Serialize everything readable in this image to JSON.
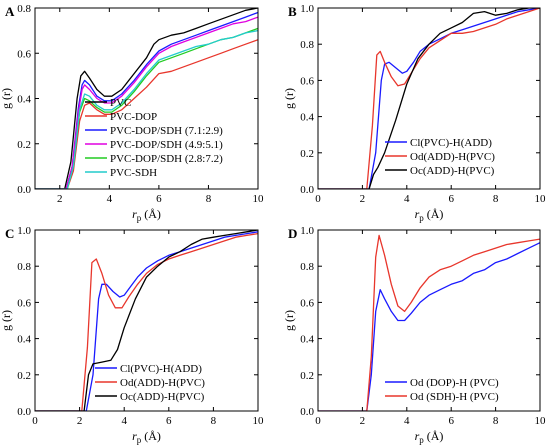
{
  "chart_data": [
    {
      "panel": "A",
      "type": "line",
      "xlabel_main": "r",
      "xlabel_sub": "p",
      "xlabel_unit": " (Å)",
      "ylabel": "g (r)",
      "xlim": [
        1,
        10
      ],
      "ylim": [
        0,
        0.8
      ],
      "xticks": [
        "2",
        "4",
        "6",
        "8",
        "10"
      ],
      "yticks": [
        "0.0",
        "0.2",
        "0.4",
        "0.6",
        "0.8"
      ],
      "legend_position": "lower-right",
      "series": [
        {
          "name": "PVC",
          "color": "#000000",
          "x": [
            1,
            2.2,
            2.45,
            2.7,
            2.85,
            3.0,
            3.2,
            3.5,
            3.8,
            4.1,
            4.5,
            5.0,
            5.5,
            5.8,
            6.0,
            6.5,
            7.0,
            7.5,
            8.0,
            8.5,
            9.0,
            9.5,
            10
          ],
          "y": [
            0,
            0,
            0.12,
            0.4,
            0.5,
            0.52,
            0.49,
            0.44,
            0.41,
            0.41,
            0.44,
            0.51,
            0.58,
            0.64,
            0.66,
            0.68,
            0.69,
            0.71,
            0.73,
            0.75,
            0.77,
            0.79,
            0.8
          ]
        },
        {
          "name": "PVC-DOP",
          "color": "#e8362c",
          "x": [
            1,
            2.3,
            2.55,
            2.8,
            3.0,
            3.2,
            3.5,
            3.8,
            4.1,
            4.5,
            5.0,
            5.5,
            6.0,
            6.5,
            7.0,
            7.5,
            8.0,
            8.5,
            9.0,
            9.5,
            10
          ],
          "y": [
            0,
            0,
            0.08,
            0.3,
            0.37,
            0.38,
            0.35,
            0.33,
            0.33,
            0.35,
            0.4,
            0.45,
            0.51,
            0.52,
            0.54,
            0.56,
            0.58,
            0.6,
            0.62,
            0.64,
            0.66
          ]
        },
        {
          "name": "PVC-DOP/SDH (7.1:2.9)",
          "color": "#1a1aff",
          "x": [
            1,
            2.25,
            2.5,
            2.75,
            2.9,
            3.0,
            3.2,
            3.5,
            3.8,
            4.1,
            4.5,
            5.0,
            5.5,
            6.0,
            6.5,
            7.0,
            7.5,
            8.0,
            8.5,
            9.0,
            9.5,
            10
          ],
          "y": [
            0,
            0,
            0.1,
            0.36,
            0.46,
            0.48,
            0.46,
            0.41,
            0.39,
            0.39,
            0.42,
            0.48,
            0.55,
            0.61,
            0.64,
            0.66,
            0.68,
            0.7,
            0.72,
            0.74,
            0.76,
            0.78
          ]
        },
        {
          "name": "PVC-DOP/SDH (4.9:5.1)",
          "color": "#e000e0",
          "x": [
            1,
            2.25,
            2.5,
            2.75,
            2.9,
            3.0,
            3.2,
            3.5,
            3.8,
            4.1,
            4.5,
            5.0,
            5.5,
            6.0,
            6.5,
            7.0,
            7.5,
            8.0,
            8.5,
            9.0,
            9.5,
            10
          ],
          "y": [
            0,
            0,
            0.1,
            0.34,
            0.44,
            0.46,
            0.44,
            0.4,
            0.38,
            0.38,
            0.41,
            0.47,
            0.54,
            0.6,
            0.63,
            0.65,
            0.67,
            0.69,
            0.71,
            0.73,
            0.74,
            0.76
          ]
        },
        {
          "name": "PVC-DOP/SDH (2.8:7.2)",
          "color": "#22cc22",
          "x": [
            1,
            2.3,
            2.55,
            2.8,
            3.0,
            3.2,
            3.5,
            3.8,
            4.1,
            4.5,
            5.0,
            5.5,
            6.0,
            6.5,
            7.0,
            7.5,
            8.0,
            8.5,
            9.0,
            9.5,
            10
          ],
          "y": [
            0,
            0,
            0.1,
            0.34,
            0.4,
            0.39,
            0.36,
            0.34,
            0.34,
            0.37,
            0.43,
            0.5,
            0.56,
            0.58,
            0.6,
            0.62,
            0.64,
            0.66,
            0.67,
            0.69,
            0.71
          ]
        },
        {
          "name": "PVC-SDH",
          "color": "#22cccc",
          "x": [
            1,
            2.3,
            2.55,
            2.8,
            3.0,
            3.2,
            3.5,
            3.8,
            4.1,
            4.5,
            5.0,
            5.5,
            6.0,
            6.5,
            7.0,
            7.5,
            8.0,
            8.5,
            9.0,
            9.5,
            10
          ],
          "y": [
            0,
            0,
            0.1,
            0.35,
            0.42,
            0.41,
            0.37,
            0.35,
            0.35,
            0.38,
            0.44,
            0.51,
            0.57,
            0.59,
            0.61,
            0.63,
            0.64,
            0.66,
            0.67,
            0.69,
            0.7
          ]
        }
      ]
    },
    {
      "panel": "B",
      "type": "line",
      "xlabel_main": "r",
      "xlabel_sub": "p",
      "xlabel_unit": " (Å)",
      "ylabel": "g (r)",
      "xlim": [
        0,
        10
      ],
      "ylim": [
        0,
        1.0
      ],
      "xticks": [
        "0",
        "2",
        "4",
        "6",
        "8",
        "10"
      ],
      "yticks": [
        "0.0",
        "0.2",
        "0.4",
        "0.6",
        "0.8",
        "1.0"
      ],
      "legend_position": "lower-right",
      "series": [
        {
          "name": "Cl(PVC)-H(ADD)",
          "color": "#1a1aff",
          "x": [
            0,
            2.3,
            2.6,
            2.85,
            3.0,
            3.2,
            3.5,
            3.8,
            4.0,
            4.3,
            4.6,
            5.0,
            5.5,
            6.0,
            6.5,
            7.0,
            7.5,
            8.0,
            8.5,
            9.0,
            9.5,
            10
          ],
          "y": [
            0,
            0,
            0.2,
            0.6,
            0.69,
            0.7,
            0.67,
            0.64,
            0.65,
            0.7,
            0.76,
            0.8,
            0.83,
            0.86,
            0.88,
            0.9,
            0.92,
            0.94,
            0.96,
            0.98,
            0.99,
            1.0
          ]
        },
        {
          "name": "Od(ADD)-H(PVC)",
          "color": "#e8362c",
          "x": [
            0,
            2.2,
            2.45,
            2.65,
            2.8,
            3.0,
            3.3,
            3.6,
            3.9,
            4.2,
            4.6,
            5.0,
            5.5,
            6.0,
            6.5,
            7.0,
            7.5,
            8.0,
            8.5,
            9.0,
            9.5,
            10
          ],
          "y": [
            0,
            0,
            0.35,
            0.74,
            0.76,
            0.7,
            0.62,
            0.57,
            0.58,
            0.64,
            0.72,
            0.78,
            0.82,
            0.86,
            0.86,
            0.87,
            0.89,
            0.91,
            0.94,
            0.96,
            0.98,
            1.0
          ]
        },
        {
          "name": "Oc(ADD)-H(PVC)",
          "color": "#000000",
          "x": [
            0,
            2.3,
            2.5,
            2.7,
            3.0,
            3.5,
            4.0,
            4.5,
            5.0,
            5.5,
            6.0,
            6.5,
            7.0,
            7.5,
            8.0,
            8.5,
            9.0,
            9.5,
            10
          ],
          "y": [
            0,
            0,
            0.08,
            0.12,
            0.2,
            0.38,
            0.58,
            0.72,
            0.8,
            0.86,
            0.89,
            0.92,
            0.97,
            0.98,
            0.96,
            0.97,
            0.99,
            1.0,
            1.0
          ]
        }
      ]
    },
    {
      "panel": "C",
      "type": "line",
      "xlabel_main": "r",
      "xlabel_sub": "p",
      "xlabel_unit": " (Å)",
      "ylabel": "g (r)",
      "xlim": [
        0,
        10
      ],
      "ylim": [
        0,
        1.0
      ],
      "xticks": [
        "0",
        "2",
        "4",
        "6",
        "8",
        "10"
      ],
      "yticks": [
        "0.0",
        "0.2",
        "0.4",
        "0.6",
        "0.8",
        "1.0"
      ],
      "legend_position": "lower-right",
      "series": [
        {
          "name": "Cl(PVC)-H(ADD)",
          "color": "#1a1aff",
          "x": [
            0,
            2.3,
            2.6,
            2.85,
            3.0,
            3.2,
            3.5,
            3.8,
            4.0,
            4.3,
            4.6,
            5.0,
            5.5,
            6.0,
            6.5,
            7.0,
            7.5,
            8.0,
            8.5,
            9.0,
            9.5,
            10
          ],
          "y": [
            0,
            0,
            0.2,
            0.62,
            0.7,
            0.7,
            0.66,
            0.63,
            0.64,
            0.69,
            0.74,
            0.79,
            0.83,
            0.86,
            0.88,
            0.9,
            0.92,
            0.94,
            0.96,
            0.97,
            0.98,
            0.99
          ]
        },
        {
          "name": "Od(ADD)-H(PVC)",
          "color": "#e8362c",
          "x": [
            0,
            2.1,
            2.35,
            2.55,
            2.75,
            3.0,
            3.3,
            3.6,
            3.9,
            4.2,
            4.6,
            5.0,
            5.5,
            6.0,
            6.5,
            7.0,
            7.5,
            8.0,
            8.5,
            9.0,
            9.5,
            10
          ],
          "y": [
            0,
            0,
            0.35,
            0.82,
            0.84,
            0.76,
            0.64,
            0.57,
            0.57,
            0.63,
            0.7,
            0.76,
            0.81,
            0.84,
            0.86,
            0.88,
            0.9,
            0.92,
            0.94,
            0.96,
            0.97,
            0.98
          ]
        },
        {
          "name": "Oc(ADD)-H(PVC)",
          "color": "#000000",
          "x": [
            0,
            2.2,
            2.4,
            2.6,
            3.0,
            3.4,
            3.7,
            4.0,
            4.5,
            5.0,
            5.5,
            6.0,
            6.5,
            7.0,
            7.5,
            8.0,
            8.5,
            9.0,
            9.5,
            10
          ],
          "y": [
            0,
            0,
            0.2,
            0.26,
            0.27,
            0.28,
            0.34,
            0.46,
            0.62,
            0.74,
            0.8,
            0.85,
            0.88,
            0.92,
            0.95,
            0.96,
            0.97,
            0.98,
            0.99,
            1.0
          ]
        }
      ]
    },
    {
      "panel": "D",
      "type": "line",
      "xlabel_main": "r",
      "xlabel_sub": "p",
      "xlabel_unit": " (Å)",
      "ylabel": "g (r)",
      "xlim": [
        0,
        10
      ],
      "ylim": [
        0,
        1.0
      ],
      "xticks": [
        "0",
        "2",
        "4",
        "6",
        "8",
        "10"
      ],
      "yticks": [
        "0.0",
        "0.2",
        "0.4",
        "0.6",
        "0.8",
        "1.0"
      ],
      "legend_position": "lower-right",
      "series": [
        {
          "name": "Od (DOP)-H (PVC)",
          "color": "#1a1aff",
          "x": [
            0,
            2.2,
            2.4,
            2.6,
            2.8,
            3.0,
            3.3,
            3.6,
            3.9,
            4.2,
            4.6,
            5.0,
            5.5,
            6.0,
            6.5,
            7.0,
            7.5,
            8.0,
            8.5,
            9.0,
            9.5,
            10
          ],
          "y": [
            0,
            0,
            0.2,
            0.55,
            0.67,
            0.62,
            0.55,
            0.5,
            0.5,
            0.54,
            0.6,
            0.64,
            0.67,
            0.7,
            0.72,
            0.76,
            0.78,
            0.82,
            0.84,
            0.87,
            0.9,
            0.93
          ]
        },
        {
          "name": "Od (SDH)-H (PVC)",
          "color": "#e8362c",
          "x": [
            0,
            2.2,
            2.4,
            2.6,
            2.75,
            3.0,
            3.3,
            3.6,
            3.9,
            4.2,
            4.6,
            5.0,
            5.5,
            6.0,
            6.5,
            7.0,
            7.5,
            8.0,
            8.5,
            9.0,
            9.5,
            10
          ],
          "y": [
            0,
            0,
            0.3,
            0.85,
            0.97,
            0.86,
            0.7,
            0.58,
            0.55,
            0.6,
            0.68,
            0.74,
            0.78,
            0.8,
            0.83,
            0.86,
            0.88,
            0.9,
            0.92,
            0.93,
            0.94,
            0.95
          ]
        }
      ]
    }
  ]
}
